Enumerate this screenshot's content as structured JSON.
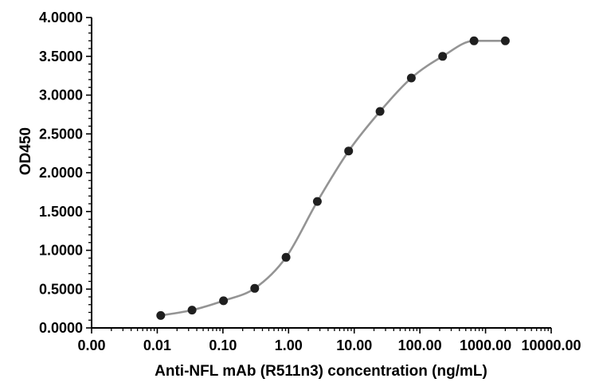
{
  "chart_data": {
    "type": "scatter",
    "title": "",
    "xlabel": "Anti-NFL mAb (R511n3) concentration (ng/mL)",
    "ylabel": "OD450",
    "x_scale": "log10",
    "xlim": [
      0.001,
      10000
    ],
    "ylim": [
      0,
      4
    ],
    "x_major_ticks": [
      0.001,
      0.01,
      0.1,
      1,
      10,
      100,
      1000,
      10000
    ],
    "x_tick_labels": [
      "0.00",
      "0.01",
      "0.10",
      "1.00",
      "10.00",
      "100.00",
      "1000.00",
      "10000.00"
    ],
    "y_major_ticks": [
      0,
      0.5,
      1,
      1.5,
      2,
      2.5,
      3,
      3.5,
      4
    ],
    "y_tick_labels": [
      "0.0000",
      "0.5000",
      "1.0000",
      "1.5000",
      "2.0000",
      "2.5000",
      "3.0000",
      "3.5000",
      "4.0000"
    ],
    "y_minor_step": 0.1,
    "grid": false,
    "legend": false,
    "series": [
      {
        "x": [
          0.0113,
          0.0339,
          0.102,
          0.305,
          0.914,
          2.74,
          8.23,
          24.69,
          74.07,
          222.2,
          666.7,
          2000
        ],
        "y": [
          0.16,
          0.23,
          0.35,
          0.51,
          0.91,
          1.63,
          2.28,
          2.79,
          3.22,
          3.5,
          3.7,
          3.7
        ],
        "marker": "circle",
        "marker_color": "#1f1f1f",
        "line_color": "#949494"
      }
    ],
    "colors": {
      "axis": "#000000",
      "background": "#ffffff"
    }
  }
}
